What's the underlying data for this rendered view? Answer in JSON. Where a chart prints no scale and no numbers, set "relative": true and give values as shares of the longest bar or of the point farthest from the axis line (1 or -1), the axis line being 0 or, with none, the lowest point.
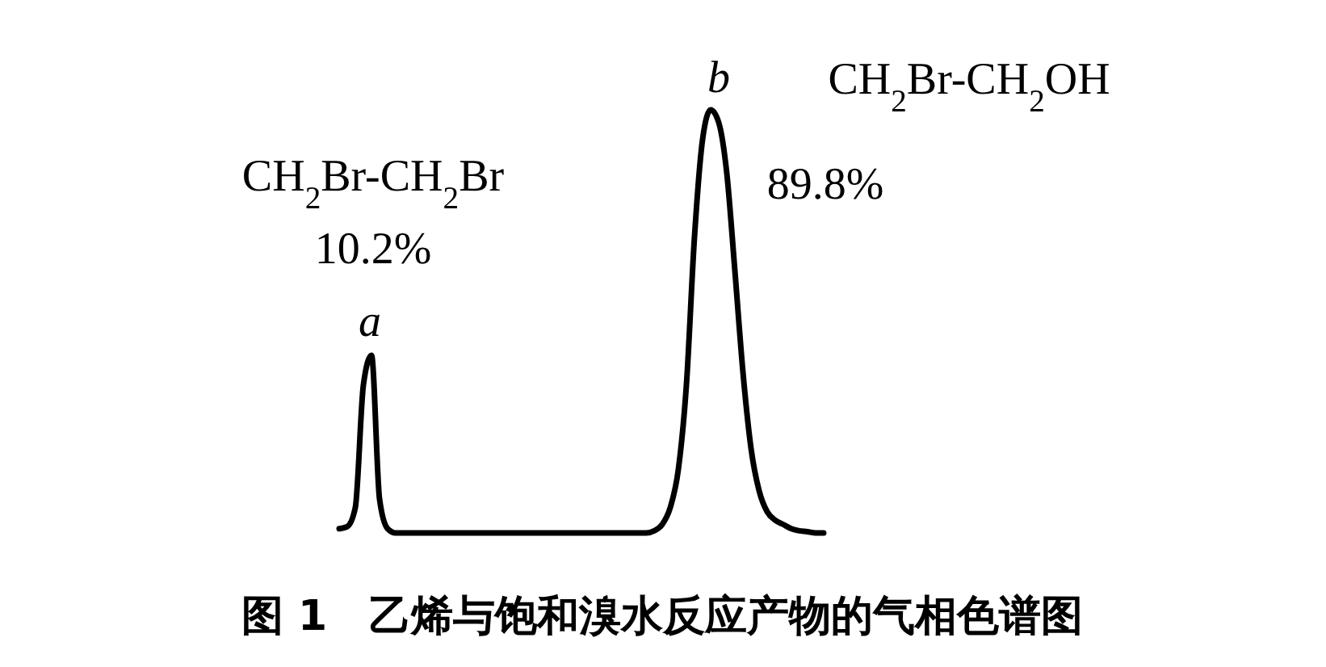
{
  "chart_data": {
    "type": "line",
    "relative": true,
    "title": "图 1　乙烯与饱和溴水反应产物的气相色谱图",
    "categories": [
      null,
      null,
      null,
      null,
      null,
      null,
      null,
      null,
      null,
      null,
      null,
      null,
      null,
      null,
      null,
      null,
      null,
      null,
      null,
      null,
      null,
      null,
      null,
      null,
      null,
      null,
      null,
      null,
      null,
      null,
      null,
      null,
      null,
      null,
      null,
      null,
      null,
      null,
      null,
      null,
      null,
      null,
      null,
      null,
      null,
      null,
      null,
      null,
      null,
      null,
      null,
      null,
      null,
      null,
      null,
      null,
      null,
      null,
      null,
      null,
      null
    ],
    "series": [
      {
        "color": "#000000",
        "values": [
          0.01,
          0.015,
          0.06,
          0.35,
          0.42,
          0.08,
          0.01,
          0,
          0,
          0,
          0,
          0,
          0,
          0,
          0,
          0,
          0,
          0,
          0,
          0,
          0,
          0,
          0,
          0,
          0,
          0,
          0,
          0,
          0,
          0,
          0,
          0,
          0,
          0,
          0,
          0,
          0,
          0,
          0,
          0.005,
          0.02,
          0.06,
          0.15,
          0.35,
          0.7,
          0.93,
          1,
          0.97,
          0.85,
          0.62,
          0.38,
          0.2,
          0.1,
          0.05,
          0.03,
          0.02,
          0.01,
          0.005,
          0.003,
          0,
          0
        ]
      }
    ],
    "marker": "none",
    "line_style": "solid",
    "tick_labels": false,
    "annotations": [
      "a",
      "CH$_{2}$Br-CH$_{2}$Br",
      "10.2%",
      "b",
      "CH$_{2}$Br-CH$_{2}$OH",
      "89.8%"
    ]
  }
}
